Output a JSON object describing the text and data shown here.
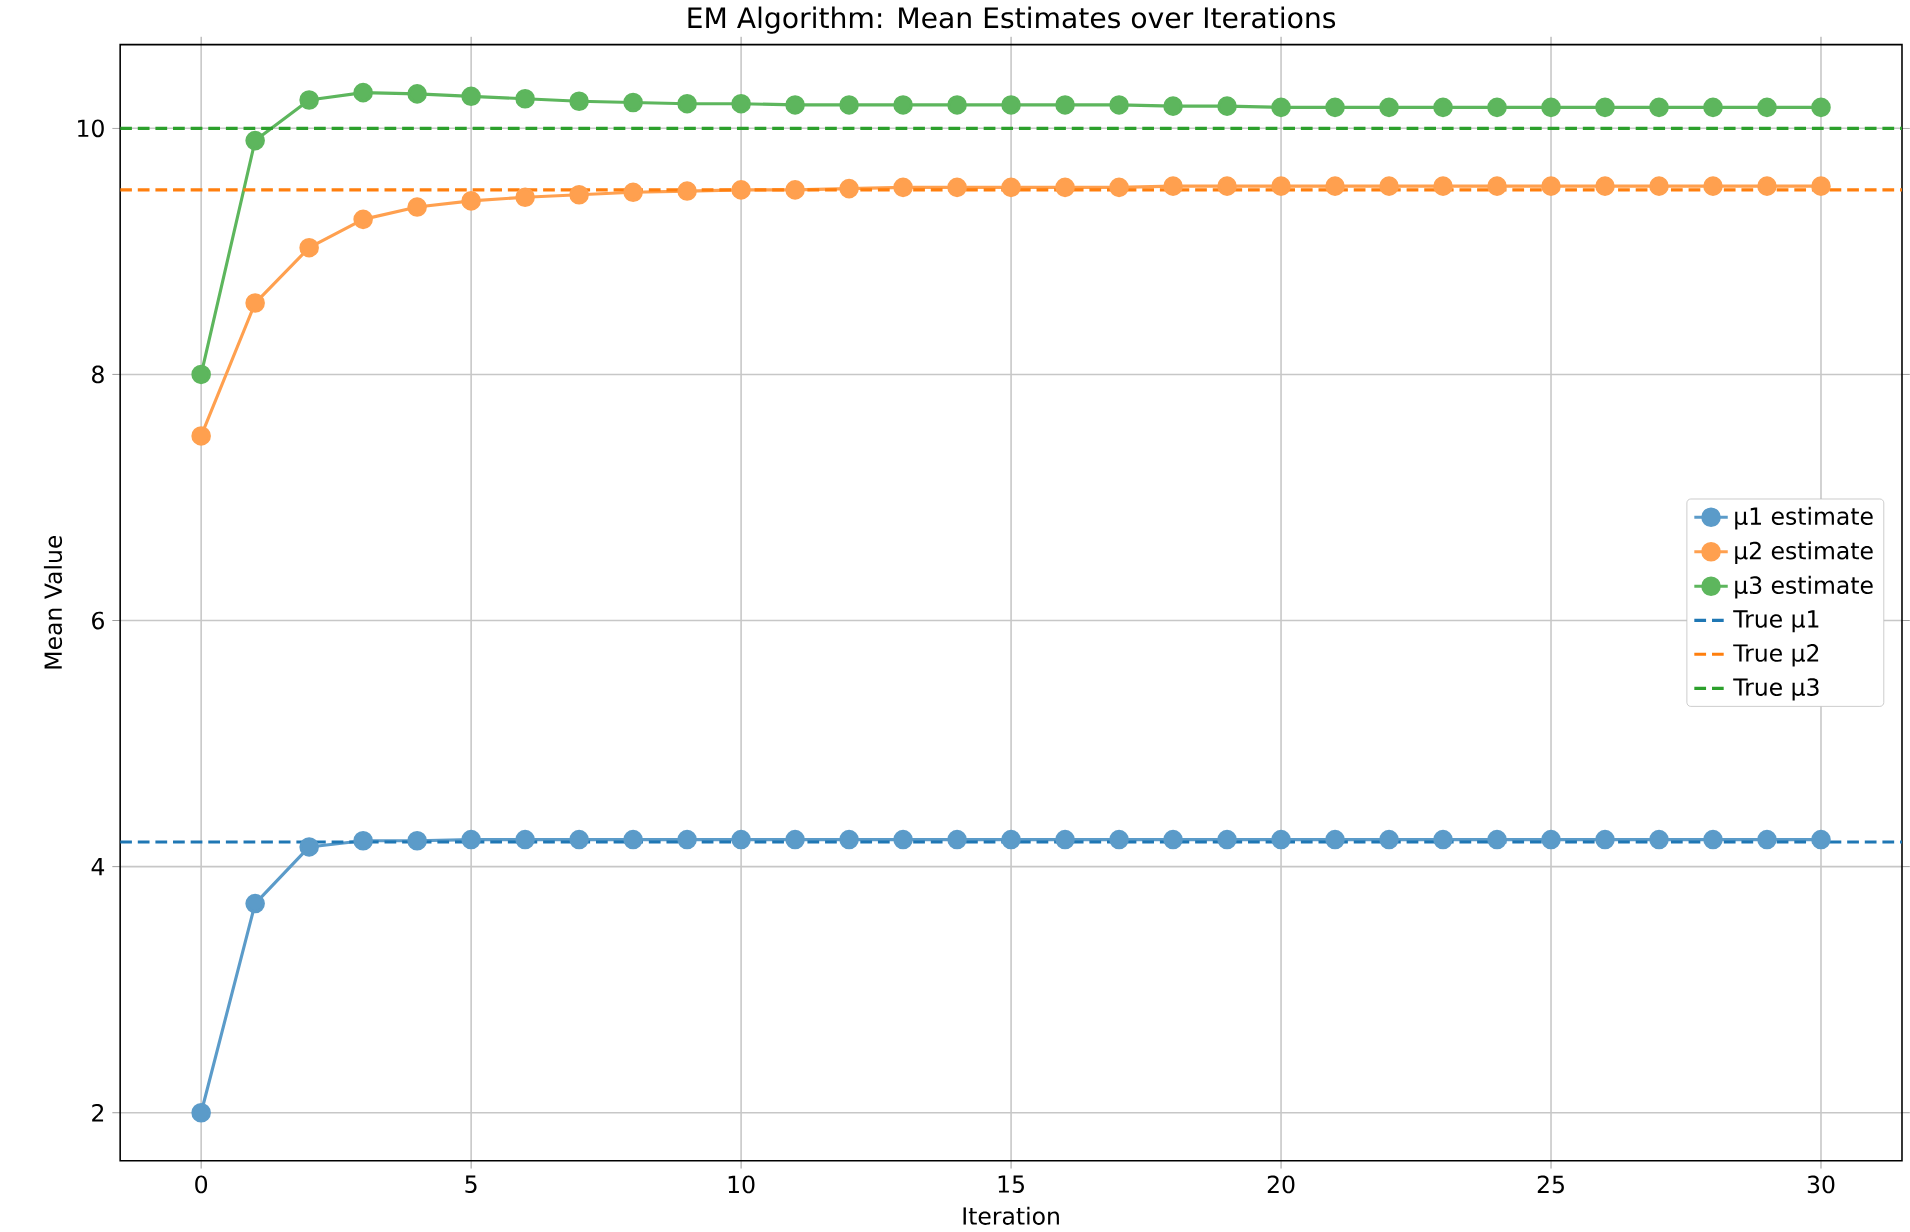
{
  "chart_data": {
    "type": "line",
    "title": "EM Algorithm: Mean Estimates over Iterations",
    "xlabel": "Iteration",
    "ylabel": "Mean Value",
    "x": [
      0,
      1,
      2,
      3,
      4,
      5,
      6,
      7,
      8,
      9,
      10,
      11,
      12,
      13,
      14,
      15,
      16,
      17,
      18,
      19,
      20,
      21,
      22,
      23,
      24,
      25,
      26,
      27,
      28,
      29,
      30
    ],
    "series": [
      {
        "name": "μ1 estimate",
        "color": "#5b9bc9",
        "values": [
          2,
          3.7,
          4.16,
          4.21,
          4.21,
          4.22,
          4.22,
          4.22,
          4.22,
          4.22,
          4.22,
          4.22,
          4.22,
          4.22,
          4.22,
          4.22,
          4.22,
          4.22,
          4.22,
          4.22,
          4.22,
          4.22,
          4.22,
          4.22,
          4.22,
          4.22,
          4.22,
          4.22,
          4.22,
          4.22,
          4.22
        ]
      },
      {
        "name": "μ2 estimate",
        "color": "#ffa04f",
        "values": [
          7.5,
          8.58,
          9.03,
          9.26,
          9.36,
          9.41,
          9.44,
          9.46,
          9.48,
          9.49,
          9.5,
          9.5,
          9.51,
          9.52,
          9.52,
          9.52,
          9.52,
          9.52,
          9.53,
          9.53,
          9.53,
          9.53,
          9.53,
          9.53,
          9.53,
          9.53,
          9.53,
          9.53,
          9.53,
          9.53,
          9.53
        ]
      },
      {
        "name": "μ3 estimate",
        "color": "#5db65d",
        "values": [
          8,
          9.9,
          10.23,
          10.29,
          10.28,
          10.26,
          10.24,
          10.22,
          10.21,
          10.2,
          10.2,
          10.19,
          10.19,
          10.19,
          10.19,
          10.19,
          10.19,
          10.19,
          10.18,
          10.18,
          10.17,
          10.17,
          10.17,
          10.17,
          10.17,
          10.17,
          10.17,
          10.17,
          10.17,
          10.17,
          10.17
        ]
      }
    ],
    "ref_lines": [
      {
        "axis": "y",
        "value": 4.2,
        "label": "True μ1",
        "color": "#1f77b4",
        "line_style": "dashed"
      },
      {
        "axis": "y",
        "value": 9.5,
        "label": "True μ2",
        "color": "#ff7f0e",
        "line_style": "dashed"
      },
      {
        "axis": "y",
        "value": 10,
        "label": "True μ3",
        "color": "#2ca02c",
        "line_style": "dashed"
      }
    ],
    "xlim": [
      -1.5,
      31.5
    ],
    "ylim": [
      1.61,
      10.68
    ],
    "xticks": [
      0,
      5,
      10,
      15,
      20,
      25,
      30
    ],
    "yticks": [
      2,
      4,
      6,
      8,
      10
    ],
    "grid": true,
    "legend": "right",
    "marker": "circle",
    "line_style": "solid"
  }
}
